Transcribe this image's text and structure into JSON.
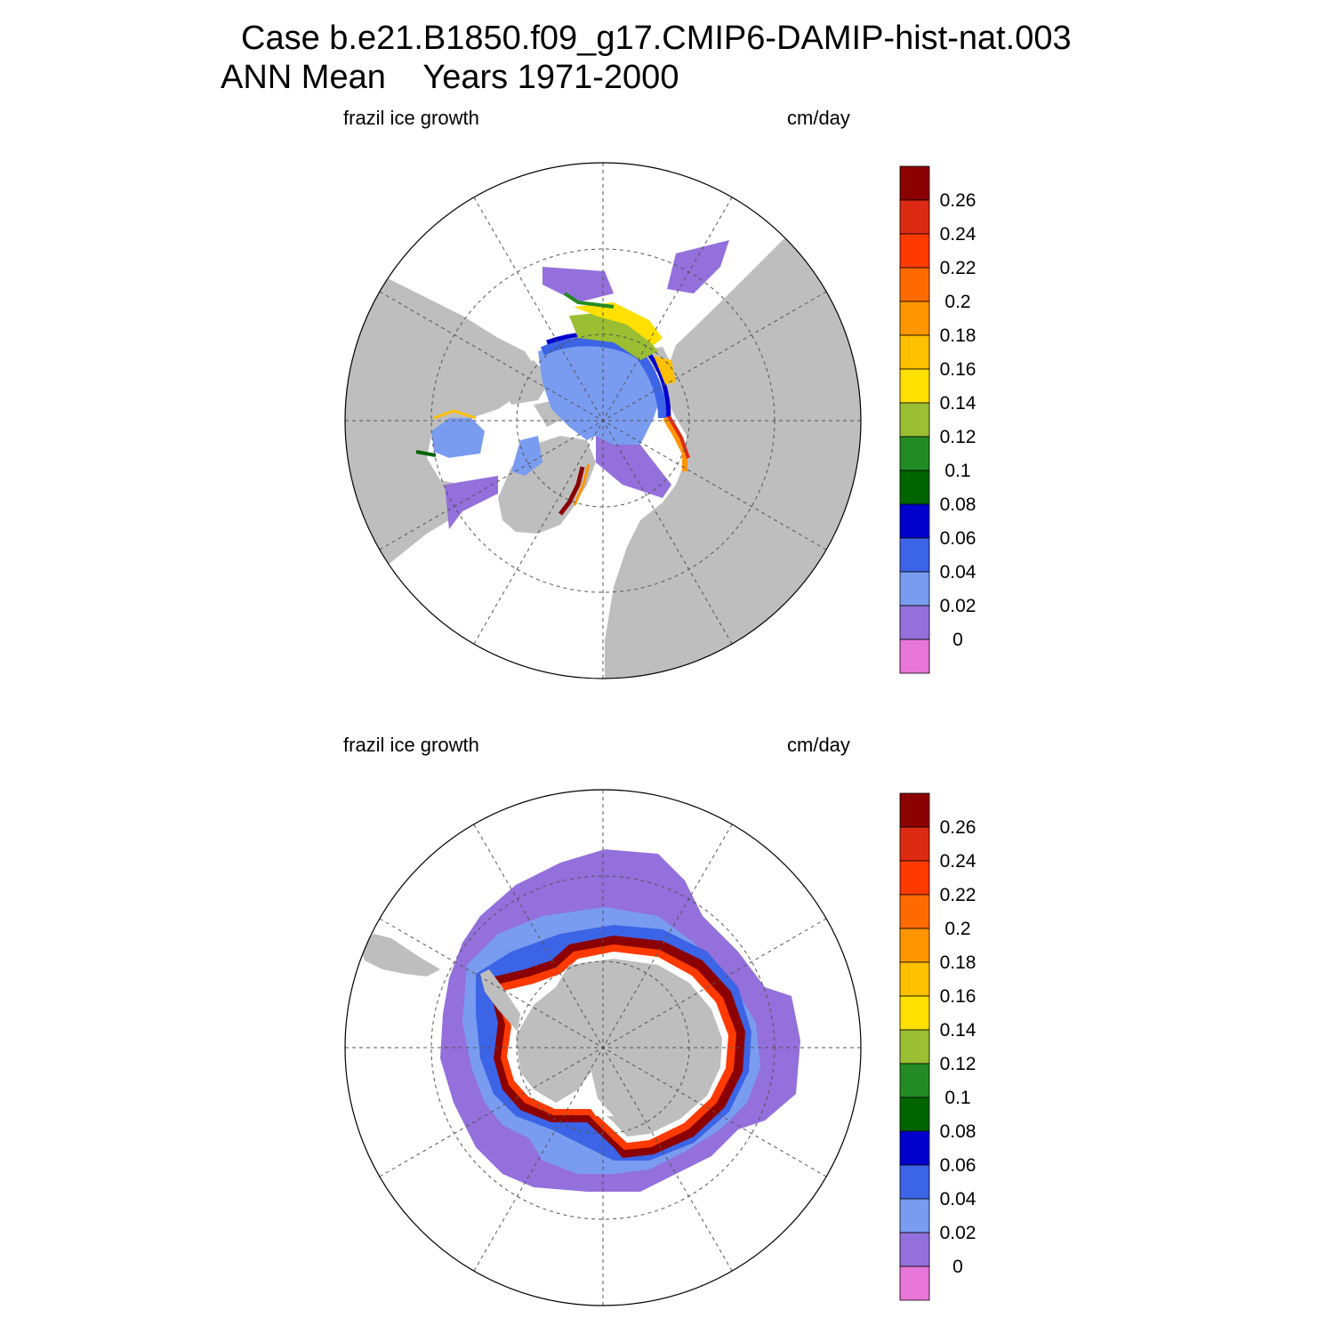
{
  "title": {
    "line1": "Case b.e21.B1850.f09_g17.CMIP6-DAMIP-hist-nat.003",
    "line2": "ANN Mean    Years 1971-2000"
  },
  "panels": [
    {
      "id": "north",
      "hemisphere": "north",
      "left_label": "frazil ice growth",
      "right_label": "cm/day"
    },
    {
      "id": "south",
      "hemisphere": "south",
      "left_label": "frazil ice growth",
      "right_label": "cm/day"
    }
  ],
  "colorbar": {
    "labels": [
      "0.26",
      "0.24",
      "0.22",
      "0.2",
      "0.18",
      "0.16",
      "0.14",
      "0.12",
      "0.1",
      "0.08",
      "0.06",
      "0.04",
      "0.02",
      "0"
    ],
    "colors": [
      "#8b0000",
      "#dd2a13",
      "#ff3a00",
      "#ff6a00",
      "#ff9500",
      "#ffc000",
      "#ffe000",
      "#9bbe33",
      "#238b23",
      "#006400",
      "#0000cd",
      "#3c64e6",
      "#7a9cf0",
      "#9370db",
      "#e876d8"
    ]
  },
  "colors": {
    "land": "#bebebe",
    "ocean_nodata": "#ffffff",
    "grid": "#555555"
  }
}
